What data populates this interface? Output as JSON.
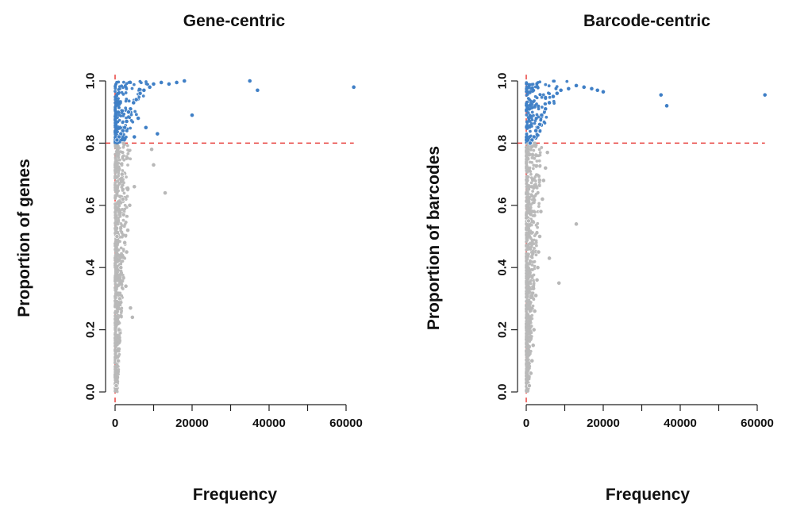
{
  "colors": {
    "high": "#3f7fc6",
    "low": "#b8b8b8",
    "threshold": "#e8403d",
    "axis": "#222222"
  },
  "chart_data": [
    {
      "type": "scatter",
      "title": "Gene-centric",
      "xlabel": "Frequency",
      "ylabel": "Proportion of genes",
      "xlim": [
        0,
        62000
      ],
      "ylim": [
        0,
        1.0
      ],
      "xticks": [
        0,
        20000,
        40000,
        60000
      ],
      "xtick_labels": [
        "0",
        "20000",
        "40000",
        "60000"
      ],
      "yticks": [
        0.0,
        0.2,
        0.4,
        0.6,
        0.8,
        1.0
      ],
      "ytick_labels": [
        "0.0",
        "0.2",
        "0.4",
        "0.6",
        "0.8",
        "1.0"
      ],
      "grid": false,
      "legend": "none",
      "reference_lines": {
        "vertical_x": 0,
        "horizontal_y": 0.8
      },
      "series": [
        {
          "values": [
            [
              62000,
              0.98
            ],
            [
              35000,
              1.0
            ],
            [
              37000,
              0.97
            ],
            [
              20000,
              0.89
            ],
            [
              18000,
              1.0
            ],
            [
              16000,
              0.995
            ],
            [
              14000,
              0.99
            ],
            [
              11000,
              0.83
            ],
            [
              8000,
              0.85
            ],
            [
              6000,
              0.88
            ],
            [
              5000,
              0.82
            ],
            [
              12000,
              0.995
            ],
            [
              10000,
              0.99
            ],
            [
              9000,
              0.98
            ],
            [
              7500,
              0.97
            ],
            [
              6500,
              0.96
            ],
            [
              5500,
              0.94
            ],
            [
              4800,
              0.93
            ],
            [
              4000,
              0.91
            ],
            [
              3500,
              0.9
            ],
            [
              3000,
              0.87
            ],
            [
              2500,
              0.85
            ],
            [
              2000,
              0.84
            ],
            [
              1500,
              0.83
            ],
            [
              1000,
              0.82
            ],
            [
              500,
              0.81
            ]
          ]
        },
        {
          "values": [
            [
              13000,
              0.64
            ],
            [
              10000,
              0.73
            ],
            [
              9500,
              0.78
            ],
            [
              5000,
              0.66
            ],
            [
              4500,
              0.24
            ],
            [
              4000,
              0.27
            ],
            [
              3800,
              0.6
            ],
            [
              3300,
              0.52
            ],
            [
              3000,
              0.45
            ],
            [
              2800,
              0.34
            ],
            [
              2500,
              0.48
            ],
            [
              2200,
              0.57
            ],
            [
              2000,
              0.62
            ],
            [
              1800,
              0.7
            ],
            [
              1500,
              0.4
            ],
            [
              1200,
              0.3
            ],
            [
              1000,
              0.2
            ],
            [
              800,
              0.1
            ],
            [
              500,
              0.5
            ],
            [
              300,
              0.02
            ]
          ]
        }
      ]
    },
    {
      "type": "scatter",
      "title": "Barcode-centric",
      "xlabel": "Frequency",
      "ylabel": "Proportion of barcodes",
      "xlim": [
        0,
        62000
      ],
      "ylim": [
        0,
        1.0
      ],
      "xticks": [
        0,
        20000,
        40000,
        60000
      ],
      "xtick_labels": [
        "0",
        "20000",
        "40000",
        "60000"
      ],
      "yticks": [
        0.0,
        0.2,
        0.4,
        0.6,
        0.8,
        1.0
      ],
      "ytick_labels": [
        "0.0",
        "0.2",
        "0.4",
        "0.6",
        "0.8",
        "1.0"
      ],
      "grid": false,
      "legend": "none",
      "reference_lines": {
        "vertical_x": 0,
        "horizontal_y": 0.8
      },
      "series": [
        {
          "values": [
            [
              62000,
              0.955
            ],
            [
              35000,
              0.955
            ],
            [
              36500,
              0.92
            ],
            [
              20000,
              0.965
            ],
            [
              18500,
              0.97
            ],
            [
              17000,
              0.975
            ],
            [
              15000,
              0.98
            ],
            [
              13000,
              0.985
            ],
            [
              11000,
              0.975
            ],
            [
              9000,
              0.97
            ],
            [
              8000,
              0.96
            ],
            [
              7000,
              0.95
            ],
            [
              6000,
              0.93
            ],
            [
              5000,
              0.91
            ],
            [
              4000,
              0.89
            ],
            [
              3500,
              0.86
            ],
            [
              3000,
              0.85
            ],
            [
              2500,
              0.84
            ],
            [
              2000,
              0.82
            ],
            [
              1500,
              0.81
            ],
            [
              1000,
              0.8
            ]
          ]
        },
        {
          "values": [
            [
              13000,
              0.54
            ],
            [
              8500,
              0.35
            ],
            [
              6000,
              0.43
            ],
            [
              5500,
              0.77
            ],
            [
              5000,
              0.72
            ],
            [
              4500,
              0.68
            ],
            [
              4200,
              0.62
            ],
            [
              3800,
              0.58
            ],
            [
              3500,
              0.5
            ],
            [
              3200,
              0.45
            ],
            [
              3000,
              0.4
            ],
            [
              2800,
              0.36
            ],
            [
              2500,
              0.31
            ],
            [
              2200,
              0.26
            ],
            [
              2000,
              0.2
            ],
            [
              1800,
              0.15
            ],
            [
              1500,
              0.1
            ],
            [
              1200,
              0.06
            ],
            [
              800,
              0.02
            ],
            [
              600,
              0.55
            ]
          ]
        }
      ]
    }
  ]
}
